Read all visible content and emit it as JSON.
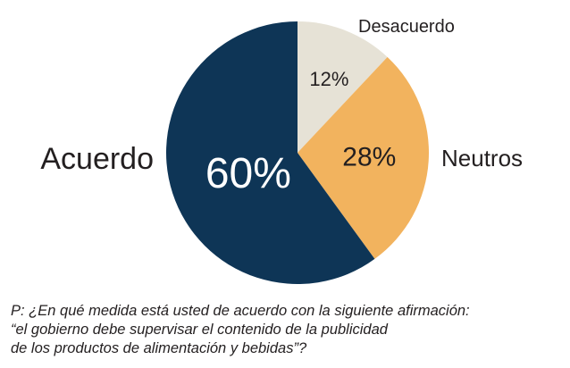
{
  "chart_data": {
    "type": "pie",
    "title": "",
    "slices": [
      {
        "label": "Desacuerdo",
        "value": 12,
        "value_label": "12%",
        "color": "#e6e2d6",
        "value_color": "#231f20"
      },
      {
        "label": "Neutros",
        "value": 28,
        "value_label": "28%",
        "color": "#f2b35e",
        "value_color": "#231f20"
      },
      {
        "label": "Acuerdo",
        "value": 60,
        "value_label": "60%",
        "color": "#0e3556",
        "value_color": "#ffffff"
      }
    ],
    "legend": "none",
    "start": "top",
    "direction": "clockwise"
  },
  "question": {
    "line1": "P: ¿En qué medida está usted de acuerdo con la siguiente afirmación:",
    "line2": "“el gobierno debe supervisar el contenido de la publicidad",
    "line3": "de los productos de alimentación y bebidas”?"
  }
}
